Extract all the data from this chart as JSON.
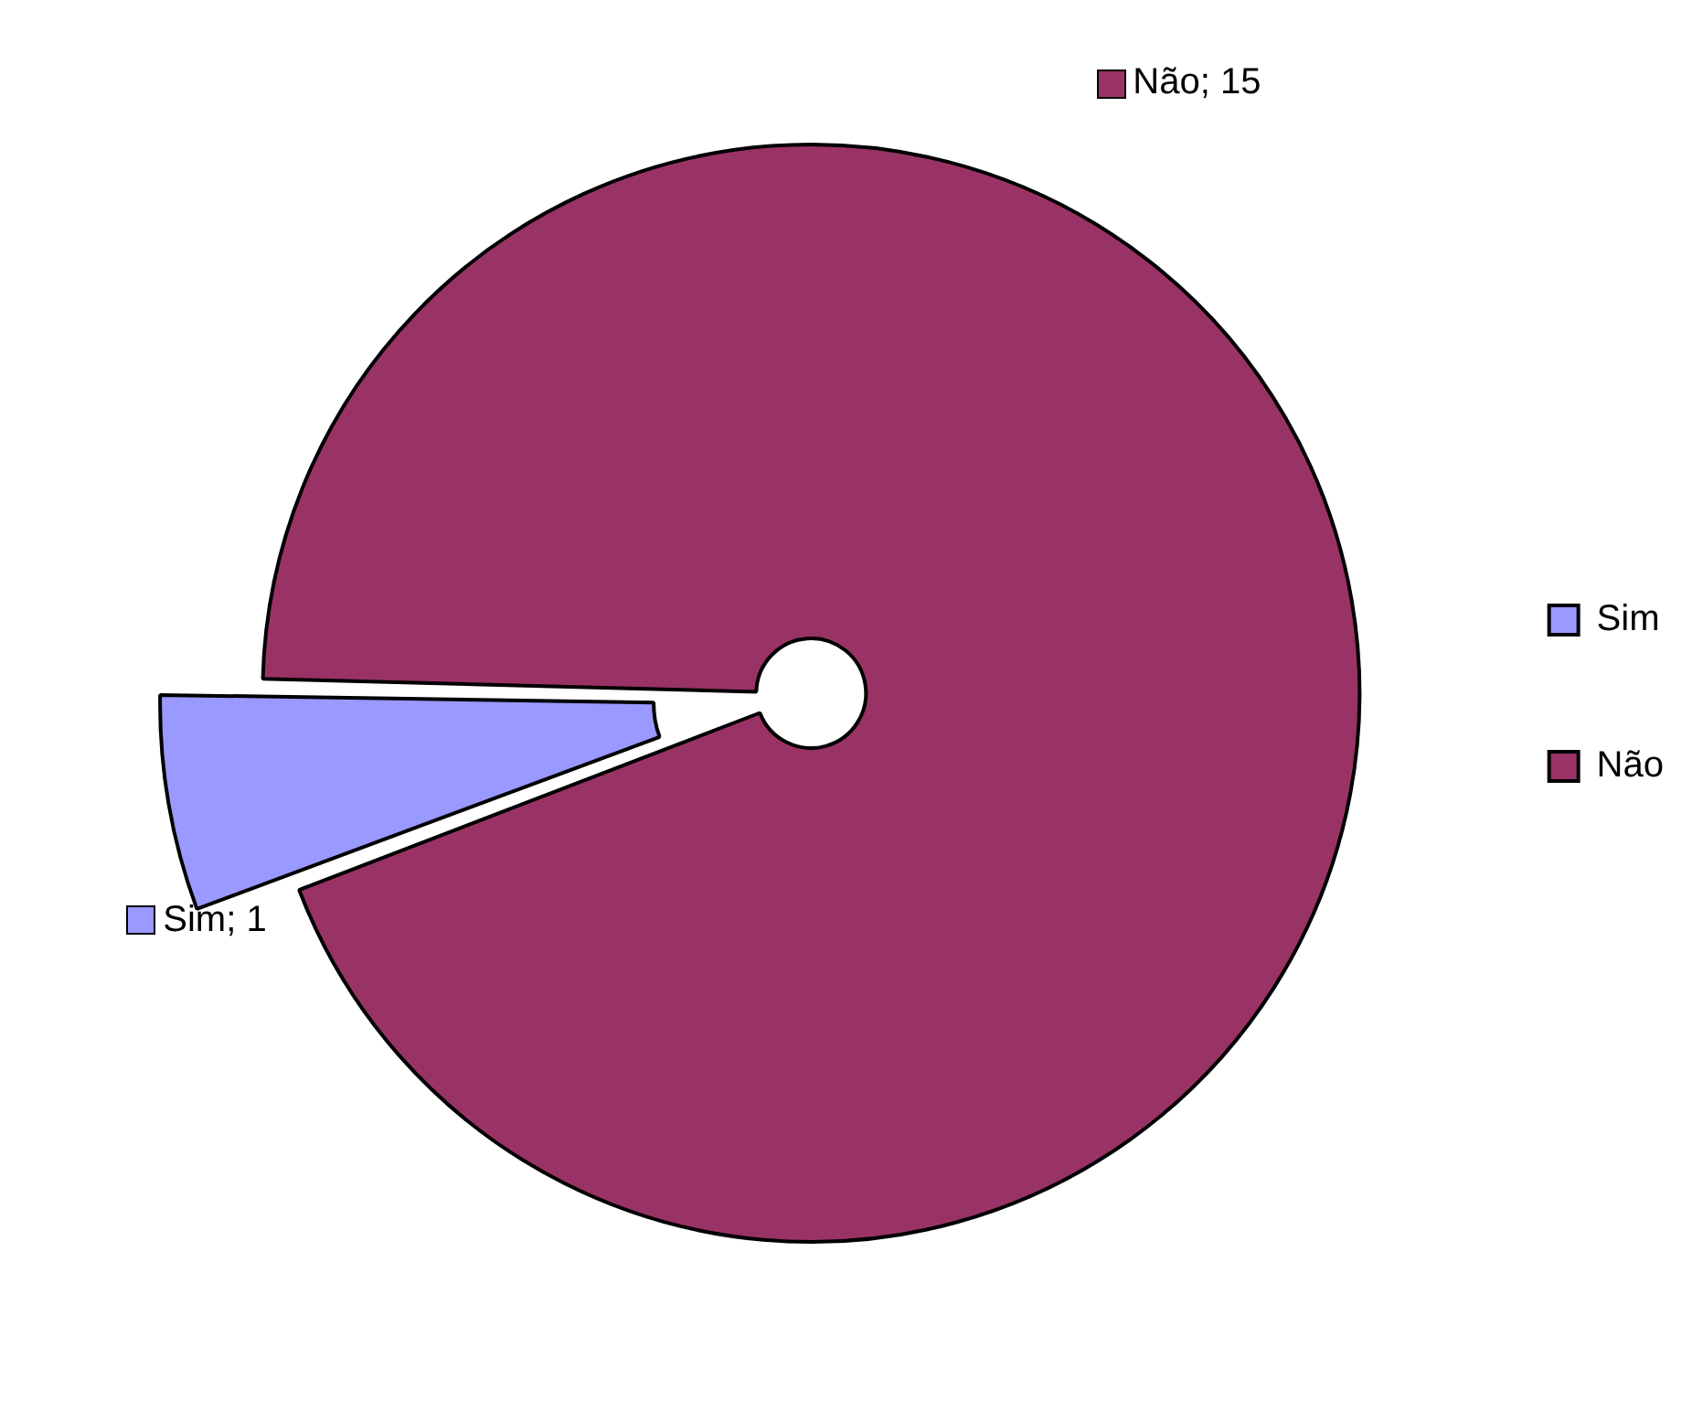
{
  "chart_data": {
    "type": "pie",
    "categories": [
      "Sim",
      "Não"
    ],
    "values": [
      1,
      15
    ],
    "colors": [
      "#9999ff",
      "#993366"
    ],
    "value_labels": [
      "Sim; 1",
      "Não; 15"
    ],
    "legend": "right"
  }
}
